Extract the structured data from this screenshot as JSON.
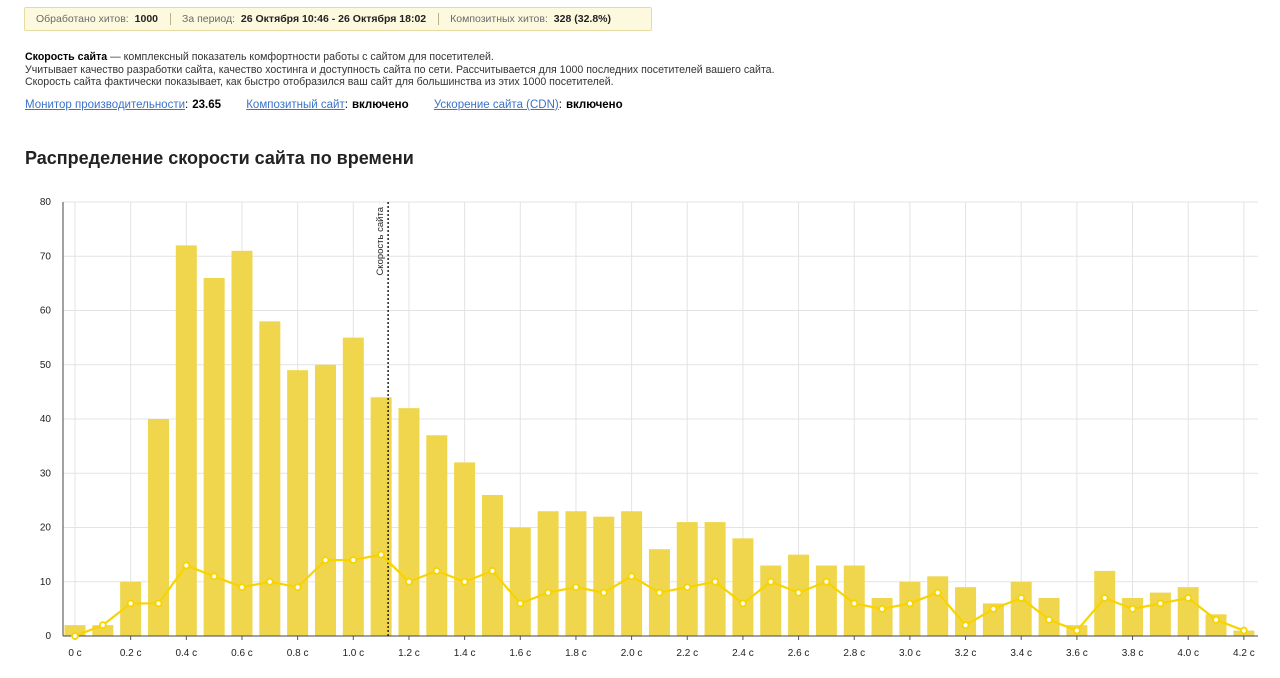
{
  "stats": {
    "hits_label": "Обработано хитов:",
    "hits_value": "1000",
    "period_label": "За период:",
    "period_value": "26 Октября 10:46 - 26 Октября 18:02",
    "composite_label": "Композитных хитов:",
    "composite_value": "328 (32.8%)"
  },
  "description": {
    "term": "Скорость сайта",
    "line1_rest": " — комплексный показатель комфортности работы с сайтом для посетителей.",
    "line2": "Учитывает качество разработки сайта, качество хостинга и доступность сайта по сети. Рассчитывается для 1000 последних посетителей вашего сайта.",
    "line3": "Скорость сайта фактически показывает, как быстро отобразился ваш сайт для большинства из этих 1000 посетителей."
  },
  "metrics": [
    {
      "link": "Монитор производительности",
      "value": "23.65"
    },
    {
      "link": "Композитный сайт",
      "value": "включено"
    },
    {
      "link": "Ускорение сайта (CDN)",
      "value": "включено"
    }
  ],
  "chart_title": "Распределение скорости сайта по времени",
  "chart_data": {
    "type": "bar",
    "title": "Распределение скорости сайта по времени",
    "ylim": [
      0,
      80
    ],
    "yticks": [
      0,
      10,
      20,
      30,
      40,
      50,
      60,
      70,
      80
    ],
    "xlim": [
      0,
      4.25
    ],
    "xticks": [
      "0 с",
      "0.2 с",
      "0.4 с",
      "0.6 с",
      "0.8 с",
      "1.0 с",
      "1.2 с",
      "1.4 с",
      "1.6 с",
      "1.8 с",
      "2.0 с",
      "2.2 с",
      "2.4 с",
      "2.6 с",
      "2.8 с",
      "3.0 с",
      "3.2 с",
      "3.4 с",
      "3.6 с",
      "3.8 с",
      "4.0 с",
      "4.2 с"
    ],
    "grid": true,
    "bar_color": "#f0d64c",
    "line_color": "#f7d400",
    "bars": {
      "x": [
        0,
        0.1,
        0.2,
        0.3,
        0.4,
        0.5,
        0.6,
        0.7,
        0.8,
        0.9,
        1.0,
        1.1,
        1.2,
        1.3,
        1.4,
        1.5,
        1.6,
        1.7,
        1.8,
        1.9,
        2.0,
        2.1,
        2.2,
        2.3,
        2.4,
        2.5,
        2.6,
        2.7,
        2.8,
        2.9,
        3.0,
        3.1,
        3.2,
        3.3,
        3.4,
        3.5,
        3.6,
        3.7,
        3.8,
        3.9,
        4.0,
        4.1,
        4.2
      ],
      "values": [
        2,
        2,
        10,
        40,
        72,
        66,
        71,
        58,
        49,
        50,
        55,
        44,
        42,
        37,
        32,
        26,
        20,
        23,
        23,
        22,
        23,
        16,
        21,
        21,
        18,
        13,
        15,
        13,
        13,
        7,
        10,
        11,
        9,
        6,
        10,
        7,
        2,
        12,
        7,
        8,
        9,
        4,
        1
      ]
    },
    "line": {
      "values": [
        0,
        2,
        6,
        6,
        13,
        11,
        9,
        10,
        9,
        14,
        14,
        15,
        10,
        12,
        10,
        12,
        6,
        8,
        9,
        8,
        11,
        8,
        9,
        10,
        6,
        10,
        8,
        10,
        6,
        5,
        6,
        8,
        2,
        5,
        7,
        3,
        1,
        7,
        5,
        6,
        7,
        3,
        1
      ]
    },
    "marker": {
      "x": 1.1,
      "label": "Скорость сайта"
    }
  }
}
